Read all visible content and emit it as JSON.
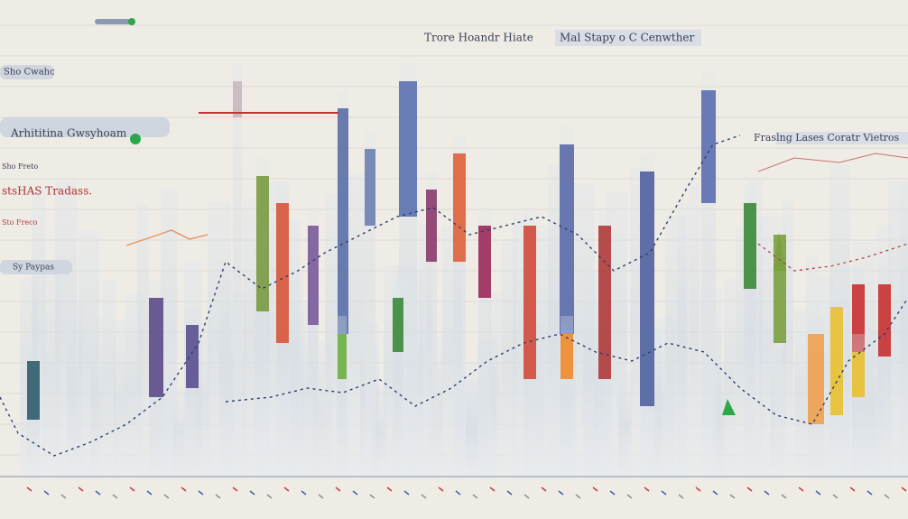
{
  "header": {
    "labels": [
      "Trore Hoandr Hiate",
      "Mal Stapy o C Cenwther"
    ]
  },
  "side_labels": {
    "left": [
      "Sho Cwahc",
      "Arhititina Gwsyhoam",
      "Sho Freto",
      "stsHAS Tradass.",
      "Sto Freco",
      "Sy Paypas"
    ],
    "right": [
      "Fraslng Lases Coratr Vietros"
    ]
  }
}
